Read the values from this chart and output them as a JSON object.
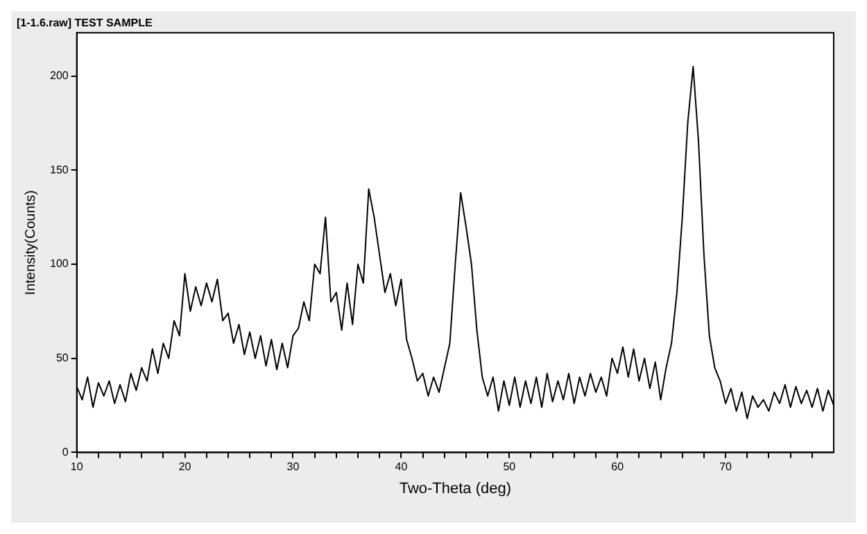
{
  "chart_data": {
    "type": "line",
    "title": "[1-1.6.raw] TEST SAMPLE",
    "xlabel": "Two-Theta (deg)",
    "ylabel": "Intensity(Counts)",
    "xlim": [
      10,
      80
    ],
    "ylim": [
      0,
      223
    ],
    "xticks": [
      10,
      {
        "value": 12,
        "label": null
      },
      {
        "value": 14,
        "label": null
      },
      {
        "value": 16,
        "label": null
      },
      {
        "value": 18,
        "label": null
      },
      20,
      {
        "value": 22,
        "label": null
      },
      {
        "value": 24,
        "label": null
      },
      {
        "value": 26,
        "label": null
      },
      {
        "value": 28,
        "label": null
      },
      30,
      {
        "value": 32,
        "label": null
      },
      {
        "value": 34,
        "label": null
      },
      {
        "value": 36,
        "label": null
      },
      {
        "value": 38,
        "label": null
      },
      40,
      {
        "value": 42,
        "label": null
      },
      {
        "value": 44,
        "label": null
      },
      {
        "value": 46,
        "label": null
      },
      {
        "value": 48,
        "label": null
      },
      50,
      {
        "value": 52,
        "label": null
      },
      {
        "value": 54,
        "label": null
      },
      {
        "value": 56,
        "label": null
      },
      {
        "value": 58,
        "label": null
      },
      60,
      {
        "value": 62,
        "label": null
      },
      {
        "value": 64,
        "label": null
      },
      {
        "value": 66,
        "label": null
      },
      {
        "value": 68,
        "label": null
      },
      70,
      {
        "value": 72,
        "label": null
      },
      {
        "value": 74,
        "label": null
      },
      {
        "value": 76,
        "label": null
      },
      {
        "value": 78,
        "label": null
      }
    ],
    "yticks": [
      0,
      50,
      100,
      150,
      200
    ],
    "grid": false,
    "legend": false,
    "marker": "none",
    "line_style": "solid",
    "series": [
      {
        "color": "#000000",
        "x": [
          10,
          10.5,
          11,
          11.5,
          12,
          12.5,
          13,
          13.5,
          14,
          14.5,
          15,
          15.5,
          16,
          16.5,
          17,
          17.5,
          18,
          18.5,
          19,
          19.5,
          20,
          20.5,
          21,
          21.5,
          22,
          22.5,
          23,
          23.5,
          24,
          24.5,
          25,
          25.5,
          26,
          26.5,
          27,
          27.5,
          28,
          28.5,
          29,
          29.5,
          30,
          30.5,
          31,
          31.5,
          32,
          32.5,
          33,
          33.5,
          34,
          34.5,
          35,
          35.5,
          36,
          36.5,
          37,
          37.5,
          38,
          38.5,
          39,
          39.5,
          40,
          40.5,
          41,
          41.5,
          42,
          42.5,
          43,
          43.5,
          44,
          44.5,
          45,
          45.5,
          46,
          46.5,
          47,
          47.5,
          48,
          48.5,
          49,
          49.5,
          50,
          50.5,
          51,
          51.5,
          52,
          52.5,
          53,
          53.5,
          54,
          54.5,
          55,
          55.5,
          56,
          56.5,
          57,
          57.5,
          58,
          58.5,
          59,
          59.5,
          60,
          60.5,
          61,
          61.5,
          62,
          62.5,
          63,
          63.5,
          64,
          64.5,
          65,
          65.5,
          66,
          66.5,
          67,
          67.5,
          68,
          68.5,
          69,
          69.5,
          70,
          70.5,
          71,
          71.5,
          72,
          72.5,
          73,
          73.5,
          74,
          74.5,
          75,
          75.5,
          76,
          76.5,
          77,
          77.5,
          78,
          78.5,
          79,
          79.5,
          80
        ],
        "values": [
          35,
          28,
          40,
          24,
          37,
          30,
          38,
          26,
          36,
          27,
          42,
          33,
          45,
          38,
          55,
          42,
          58,
          50,
          70,
          62,
          95,
          75,
          88,
          78,
          90,
          80,
          92,
          70,
          74,
          58,
          68,
          52,
          64,
          50,
          62,
          46,
          60,
          44,
          58,
          45,
          62,
          66,
          80,
          70,
          100,
          95,
          125,
          80,
          85,
          65,
          90,
          68,
          100,
          90,
          140,
          125,
          105,
          85,
          95,
          78,
          92,
          60,
          50,
          38,
          42,
          30,
          40,
          32,
          45,
          58,
          100,
          138,
          120,
          100,
          65,
          40,
          30,
          40,
          22,
          38,
          25,
          40,
          24,
          38,
          26,
          40,
          24,
          42,
          27,
          38,
          28,
          42,
          26,
          40,
          30,
          42,
          32,
          40,
          30,
          50,
          42,
          56,
          40,
          55,
          38,
          50,
          34,
          48,
          28,
          45,
          58,
          85,
          125,
          175,
          205,
          165,
          105,
          62,
          45,
          38,
          26,
          34,
          22,
          32,
          18,
          30,
          24,
          28,
          22,
          32,
          26,
          36,
          24,
          35,
          26,
          33,
          24,
          34,
          22,
          33,
          25
        ]
      }
    ]
  }
}
